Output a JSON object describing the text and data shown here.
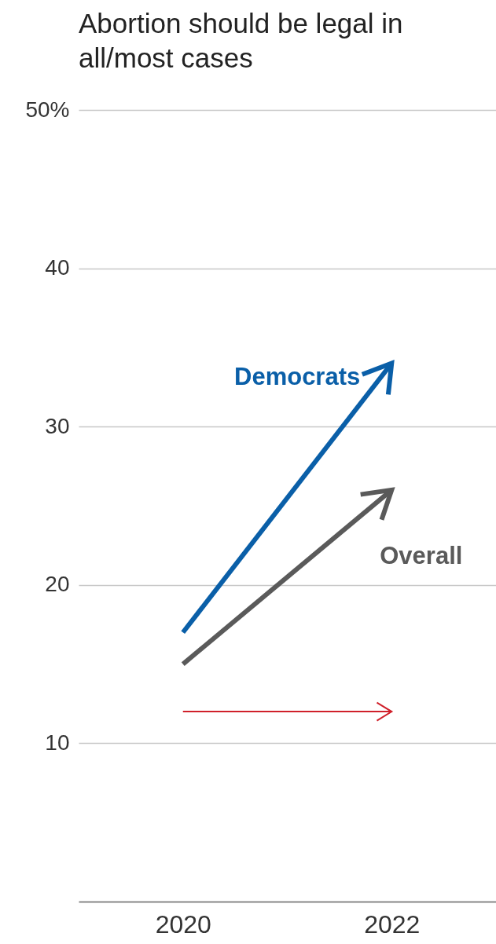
{
  "chart_data": {
    "type": "line",
    "title": "Abortion should be legal in all/most cases",
    "categories": [
      "2020",
      "2022"
    ],
    "ylim": [
      0,
      50
    ],
    "yticks": [
      10,
      20,
      30,
      40,
      {
        "value": 50,
        "label": "50%"
      }
    ],
    "grid": "y",
    "series": [
      {
        "name": "Democrats",
        "color": "#0a5fa8",
        "values": [
          17,
          34
        ]
      },
      {
        "name": "Overall",
        "color": "#5a5a5a",
        "values": [
          15,
          26
        ]
      },
      {
        "color": "#d0202a",
        "values": [
          12,
          12
        ]
      }
    ]
  }
}
